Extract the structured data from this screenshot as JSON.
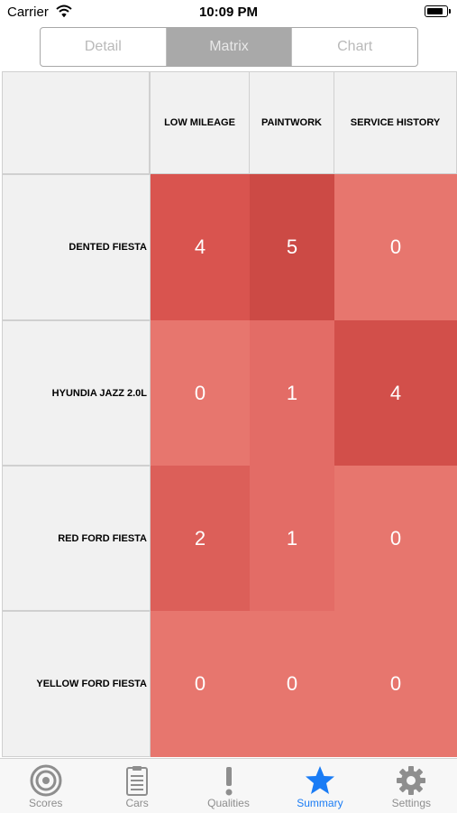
{
  "status_bar": {
    "carrier": "Carrier",
    "time": "10:09 PM"
  },
  "segmented_control": {
    "segments": [
      {
        "label": "Detail",
        "active": false
      },
      {
        "label": "Matrix",
        "active": true
      },
      {
        "label": "Chart",
        "active": false
      }
    ]
  },
  "matrix": {
    "columns": [
      "LOW MILEAGE",
      "PAINTWORK",
      "SERVICE HISTORY"
    ],
    "rows": [
      {
        "label": "DENTED FIESTA",
        "values": [
          4,
          5,
          0
        ],
        "colors": [
          "#d9544f",
          "#cc4a45",
          "#e7766e"
        ]
      },
      {
        "label": "HYUNDIA JAZZ 2.0L",
        "values": [
          0,
          1,
          4
        ],
        "colors": [
          "#e7766e",
          "#e36c66",
          "#d24f4a"
        ]
      },
      {
        "label": "RED FORD FIESTA",
        "values": [
          2,
          1,
          0
        ],
        "colors": [
          "#dc5f59",
          "#e36c66",
          "#e7766e"
        ]
      },
      {
        "label": "YELLOW FORD FIESTA",
        "values": [
          0,
          0,
          0
        ],
        "colors": [
          "#e7766e",
          "#e7766e",
          "#e7766e"
        ]
      }
    ]
  },
  "tab_bar": {
    "tabs": [
      {
        "label": "Scores",
        "icon": "target-icon",
        "active": false
      },
      {
        "label": "Cars",
        "icon": "clipboard-icon",
        "active": false
      },
      {
        "label": "Qualities",
        "icon": "exclamation-icon",
        "active": false
      },
      {
        "label": "Summary",
        "icon": "star-icon",
        "active": true
      },
      {
        "label": "Settings",
        "icon": "gear-icon",
        "active": false
      }
    ]
  },
  "colors": {
    "accent": "#1a7cf5",
    "inactive_tab": "#8e8e8e"
  }
}
